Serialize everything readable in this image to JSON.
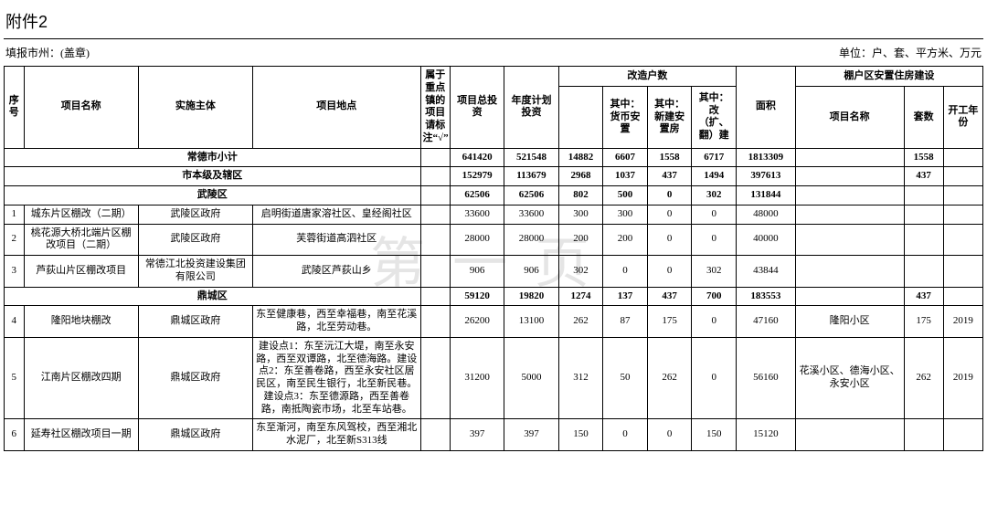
{
  "title": "附件2",
  "report_label": "填报市州：(盖章)",
  "unit_label": "单位：户、套、平方米、万元",
  "watermark": "第一页",
  "headers": {
    "seq": "序号",
    "proj_name": "项目名称",
    "entity": "实施主体",
    "location": "项目地点",
    "key_town": "属于重点镇的项目请标注“√”",
    "total_inv": "项目总投资",
    "plan_inv": "年度计划投资",
    "reform_group": "改造户数",
    "reform_sub1": "其中：货币安置",
    "reform_sub2": "其中：新建安置房",
    "reform_sub3": "其中：改（扩、翻）建",
    "area": "面积",
    "housing_group": "棚户区安置住房建设",
    "house_proj": "项目名称",
    "sets": "套数",
    "start_year": "开工年份"
  },
  "sections": {
    "city_subtotal": {
      "label": "常德市小计",
      "total_inv": "641420",
      "plan_inv": "521548",
      "reform_total": "14882",
      "r1": "6607",
      "r2": "1558",
      "r3": "6717",
      "area": "1813309",
      "house_proj": "",
      "sets": "1558",
      "year": ""
    },
    "district_level": {
      "label": "市本级及辖区",
      "total_inv": "152979",
      "plan_inv": "113679",
      "reform_total": "2968",
      "r1": "1037",
      "r2": "437",
      "r3": "1494",
      "area": "397613",
      "house_proj": "",
      "sets": "437",
      "year": ""
    },
    "wuling": {
      "label": "武陵区",
      "total_inv": "62506",
      "plan_inv": "62506",
      "reform_total": "802",
      "r1": "500",
      "r2": "0",
      "r3": "302",
      "area": "131844",
      "house_proj": "",
      "sets": "",
      "year": ""
    },
    "dingcheng": {
      "label": "鼎城区",
      "total_inv": "59120",
      "plan_inv": "19820",
      "reform_total": "1274",
      "r1": "137",
      "r2": "437",
      "r3": "700",
      "area": "183553",
      "house_proj": "",
      "sets": "437",
      "year": ""
    }
  },
  "rows": [
    {
      "idx": "1",
      "name": "城东片区棚改（二期）",
      "entity": "武陵区政府",
      "location": "启明街道唐家溶社区、皇经阁社区",
      "key": "",
      "total_inv": "33600",
      "plan_inv": "33600",
      "reform_total": "300",
      "r1": "300",
      "r2": "0",
      "r3": "0",
      "area": "48000",
      "house_proj": "",
      "sets": "",
      "year": ""
    },
    {
      "idx": "2",
      "name": "桃花源大桥北端片区棚改项目（二期）",
      "entity": "武陵区政府",
      "location": "芙蓉街道高泗社区",
      "key": "",
      "total_inv": "28000",
      "plan_inv": "28000",
      "reform_total": "200",
      "r1": "200",
      "r2": "0",
      "r3": "0",
      "area": "40000",
      "house_proj": "",
      "sets": "",
      "year": ""
    },
    {
      "idx": "3",
      "name": "芦荻山片区棚改项目",
      "entity": "常德江北投资建设集团有限公司",
      "location": "武陵区芦荻山乡",
      "key": "",
      "total_inv": "906",
      "plan_inv": "906",
      "reform_total": "302",
      "r1": "0",
      "r2": "0",
      "r3": "302",
      "area": "43844",
      "house_proj": "",
      "sets": "",
      "year": ""
    },
    {
      "idx": "4",
      "name": "隆阳地块棚改",
      "entity": "鼎城区政府",
      "location": "东至健康巷，西至幸福巷，南至花溪路，北至劳动巷。",
      "key": "",
      "total_inv": "26200",
      "plan_inv": "13100",
      "reform_total": "262",
      "r1": "87",
      "r2": "175",
      "r3": "0",
      "area": "47160",
      "house_proj": "隆阳小区",
      "sets": "175",
      "year": "2019"
    },
    {
      "idx": "5",
      "name": "江南片区棚改四期",
      "entity": "鼎城区政府",
      "location": "建设点1：东至沅江大堤，南至永安路，西至双谭路，北至德海路。建设点2：东至善卷路，西至永安社区居民区，南至民生银行，北至新民巷。建设点3：东至德源路，西至善卷路，南抵陶瓷市场，北至车站巷。",
      "key": "",
      "total_inv": "31200",
      "plan_inv": "5000",
      "reform_total": "312",
      "r1": "50",
      "r2": "262",
      "r3": "0",
      "area": "56160",
      "house_proj": "花溪小区、德海小区、永安小区",
      "sets": "262",
      "year": "2019"
    },
    {
      "idx": "6",
      "name": "延寿社区棚改项目一期",
      "entity": "鼎城区政府",
      "location": "东至渐河，南至东风驾校，西至湘北水泥厂，北至新S313线",
      "key": "",
      "total_inv": "397",
      "plan_inv": "397",
      "reform_total": "150",
      "r1": "0",
      "r2": "0",
      "r3": "150",
      "area": "15120",
      "house_proj": "",
      "sets": "",
      "year": ""
    }
  ]
}
